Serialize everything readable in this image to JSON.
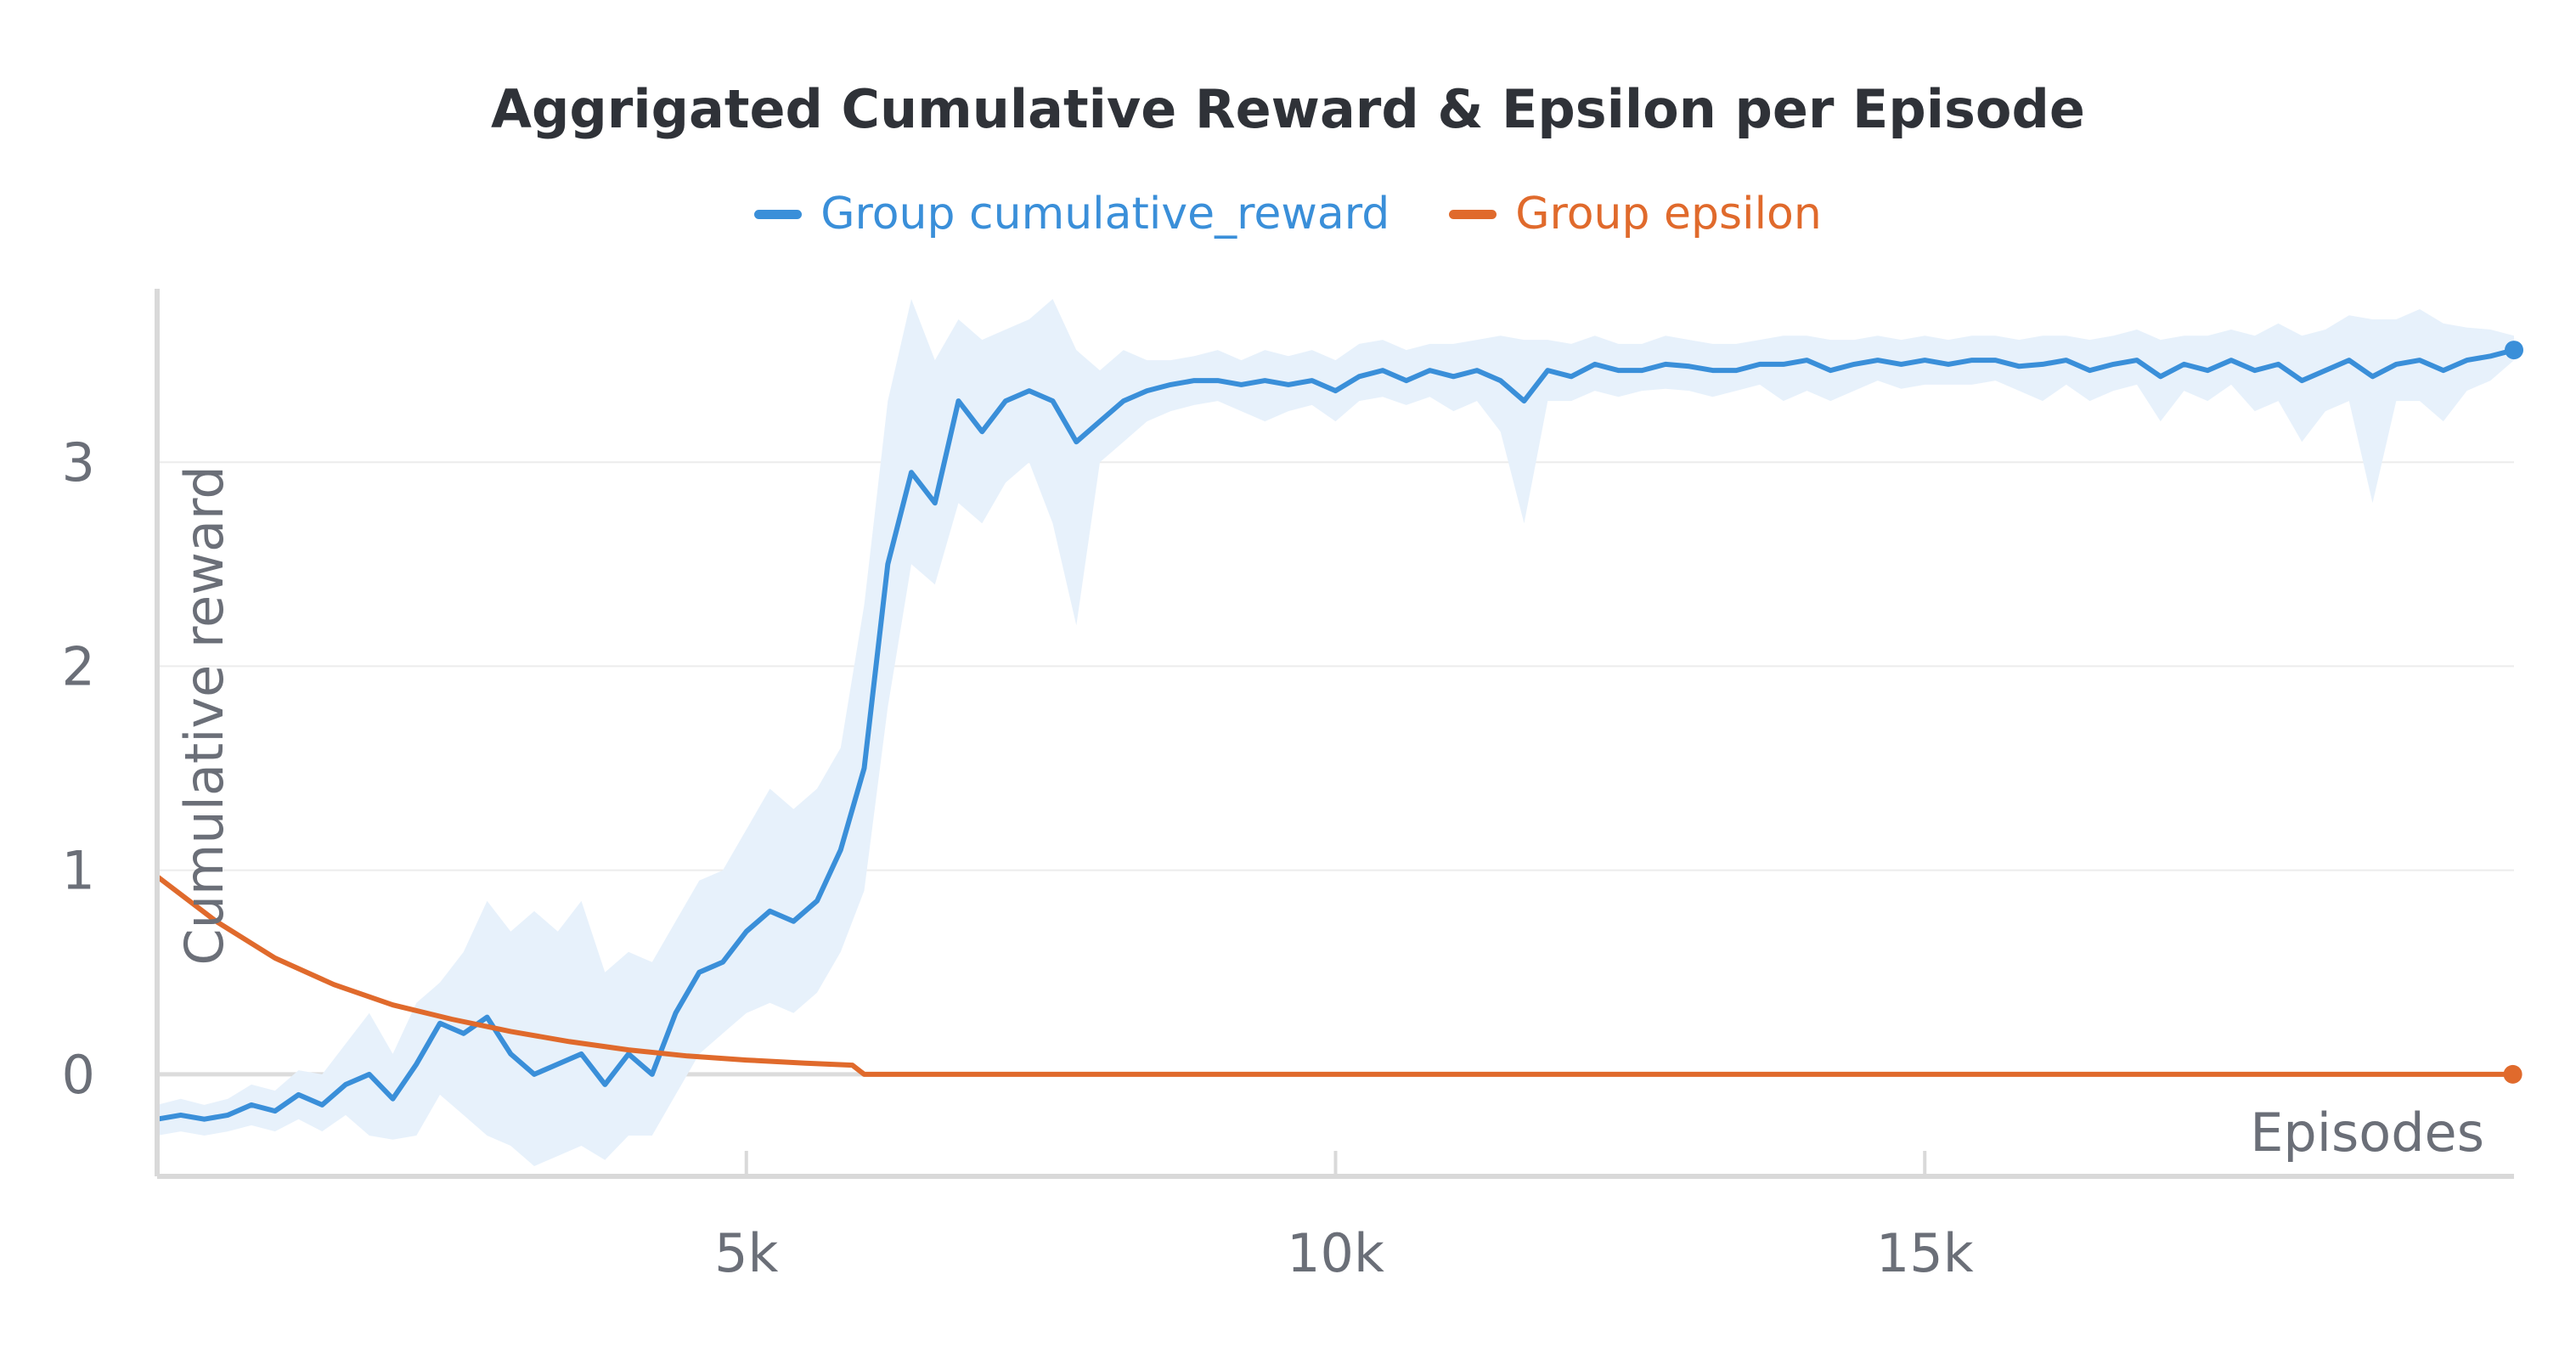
{
  "chart_data": {
    "type": "line",
    "title": "Aggrigated Cumulative Reward & Epsilon per Episode",
    "xlabel": "Episodes",
    "ylabel": "Cumulative reward",
    "xlim": [
      0,
      20000
    ],
    "ylim": [
      -0.5,
      3.85
    ],
    "x_ticks": [
      5000,
      10000,
      15000
    ],
    "x_tick_labels": [
      "5k",
      "10k",
      "15k"
    ],
    "y_ticks": [
      0,
      1,
      2,
      3
    ],
    "y_tick_labels": [
      "0",
      "1",
      "2",
      "3"
    ],
    "grid": "horizontal",
    "legend_position": "top-center",
    "series": [
      {
        "name": "Group cumulative_reward",
        "color": "#3a8fd9",
        "band_color": "#e7f1fb",
        "x": [
          0,
          200,
          400,
          600,
          800,
          1000,
          1200,
          1400,
          1600,
          1800,
          2000,
          2200,
          2400,
          2600,
          2800,
          3000,
          3200,
          3400,
          3600,
          3800,
          4000,
          4200,
          4400,
          4600,
          4800,
          5000,
          5200,
          5400,
          5600,
          5800,
          6000,
          6200,
          6400,
          6600,
          6800,
          7000,
          7200,
          7400,
          7600,
          7800,
          8000,
          8200,
          8400,
          8600,
          8800,
          9000,
          9200,
          9400,
          9600,
          9800,
          10000,
          10200,
          10400,
          10600,
          10800,
          11000,
          11200,
          11400,
          11600,
          11800,
          12000,
          12200,
          12400,
          12600,
          12800,
          13000,
          13200,
          13400,
          13600,
          13800,
          14000,
          14200,
          14400,
          14600,
          14800,
          15000,
          15200,
          15400,
          15600,
          15800,
          16000,
          16200,
          16400,
          16600,
          16800,
          17000,
          17200,
          17400,
          17600,
          17800,
          18000,
          18200,
          18400,
          18600,
          18800,
          19000,
          19200,
          19400,
          19600,
          19800,
          20000
        ],
        "y": [
          -0.22,
          -0.2,
          -0.22,
          -0.2,
          -0.15,
          -0.18,
          -0.1,
          -0.15,
          -0.05,
          0.0,
          -0.12,
          0.05,
          0.25,
          0.2,
          0.28,
          0.1,
          0.0,
          0.05,
          0.1,
          -0.05,
          0.1,
          0.0,
          0.3,
          0.5,
          0.55,
          0.7,
          0.8,
          0.75,
          0.85,
          1.1,
          1.5,
          2.5,
          2.95,
          2.8,
          3.3,
          3.15,
          3.3,
          3.35,
          3.3,
          3.1,
          3.2,
          3.3,
          3.35,
          3.38,
          3.4,
          3.4,
          3.38,
          3.4,
          3.38,
          3.4,
          3.35,
          3.42,
          3.45,
          3.4,
          3.45,
          3.42,
          3.45,
          3.4,
          3.3,
          3.45,
          3.42,
          3.48,
          3.45,
          3.45,
          3.48,
          3.47,
          3.45,
          3.45,
          3.48,
          3.48,
          3.5,
          3.45,
          3.48,
          3.5,
          3.48,
          3.5,
          3.48,
          3.5,
          3.5,
          3.47,
          3.48,
          3.5,
          3.45,
          3.48,
          3.5,
          3.42,
          3.48,
          3.45,
          3.5,
          3.45,
          3.48,
          3.4,
          3.45,
          3.5,
          3.42,
          3.48,
          3.5,
          3.45,
          3.5,
          3.52,
          3.55
        ],
        "lower": [
          -0.3,
          -0.28,
          -0.3,
          -0.28,
          -0.25,
          -0.28,
          -0.22,
          -0.28,
          -0.2,
          -0.3,
          -0.32,
          -0.3,
          -0.1,
          -0.2,
          -0.3,
          -0.35,
          -0.45,
          -0.4,
          -0.35,
          -0.42,
          -0.3,
          -0.3,
          -0.1,
          0.1,
          0.2,
          0.3,
          0.35,
          0.3,
          0.4,
          0.6,
          0.9,
          1.8,
          2.5,
          2.4,
          2.8,
          2.7,
          2.9,
          3.0,
          2.7,
          2.2,
          3.0,
          3.1,
          3.2,
          3.25,
          3.28,
          3.3,
          3.25,
          3.2,
          3.25,
          3.28,
          3.2,
          3.3,
          3.32,
          3.28,
          3.32,
          3.25,
          3.3,
          3.15,
          2.7,
          3.3,
          3.3,
          3.35,
          3.32,
          3.35,
          3.36,
          3.35,
          3.32,
          3.35,
          3.38,
          3.3,
          3.35,
          3.3,
          3.35,
          3.4,
          3.36,
          3.38,
          3.38,
          3.38,
          3.4,
          3.35,
          3.3,
          3.38,
          3.3,
          3.35,
          3.38,
          3.2,
          3.35,
          3.3,
          3.38,
          3.25,
          3.3,
          3.1,
          3.25,
          3.3,
          2.8,
          3.3,
          3.3,
          3.2,
          3.35,
          3.4,
          3.5
        ],
        "upper": [
          -0.15,
          -0.12,
          -0.15,
          -0.12,
          -0.05,
          -0.08,
          0.02,
          0.0,
          0.15,
          0.3,
          0.1,
          0.35,
          0.45,
          0.6,
          0.85,
          0.7,
          0.8,
          0.7,
          0.85,
          0.5,
          0.6,
          0.55,
          0.75,
          0.95,
          1.0,
          1.2,
          1.4,
          1.3,
          1.4,
          1.6,
          2.3,
          3.3,
          3.8,
          3.5,
          3.7,
          3.6,
          3.65,
          3.7,
          3.8,
          3.55,
          3.45,
          3.55,
          3.5,
          3.5,
          3.52,
          3.55,
          3.5,
          3.55,
          3.52,
          3.55,
          3.5,
          3.58,
          3.6,
          3.55,
          3.58,
          3.58,
          3.6,
          3.62,
          3.6,
          3.6,
          3.58,
          3.62,
          3.58,
          3.58,
          3.62,
          3.6,
          3.58,
          3.58,
          3.6,
          3.62,
          3.62,
          3.6,
          3.6,
          3.62,
          3.6,
          3.62,
          3.6,
          3.62,
          3.62,
          3.6,
          3.62,
          3.62,
          3.6,
          3.62,
          3.65,
          3.6,
          3.62,
          3.62,
          3.65,
          3.62,
          3.68,
          3.62,
          3.65,
          3.72,
          3.7,
          3.7,
          3.75,
          3.68,
          3.66,
          3.65,
          3.62
        ]
      },
      {
        "name": "Group epsilon",
        "color": "#e06a2c",
        "x": [
          0,
          500,
          1000,
          1500,
          2000,
          2500,
          3000,
          3500,
          4000,
          4500,
          5000,
          5500,
          5900,
          6000,
          19990
        ],
        "y": [
          0.97,
          0.75,
          0.57,
          0.44,
          0.34,
          0.27,
          0.21,
          0.16,
          0.12,
          0.09,
          0.07,
          0.055,
          0.045,
          0.0,
          0.0
        ]
      }
    ]
  }
}
